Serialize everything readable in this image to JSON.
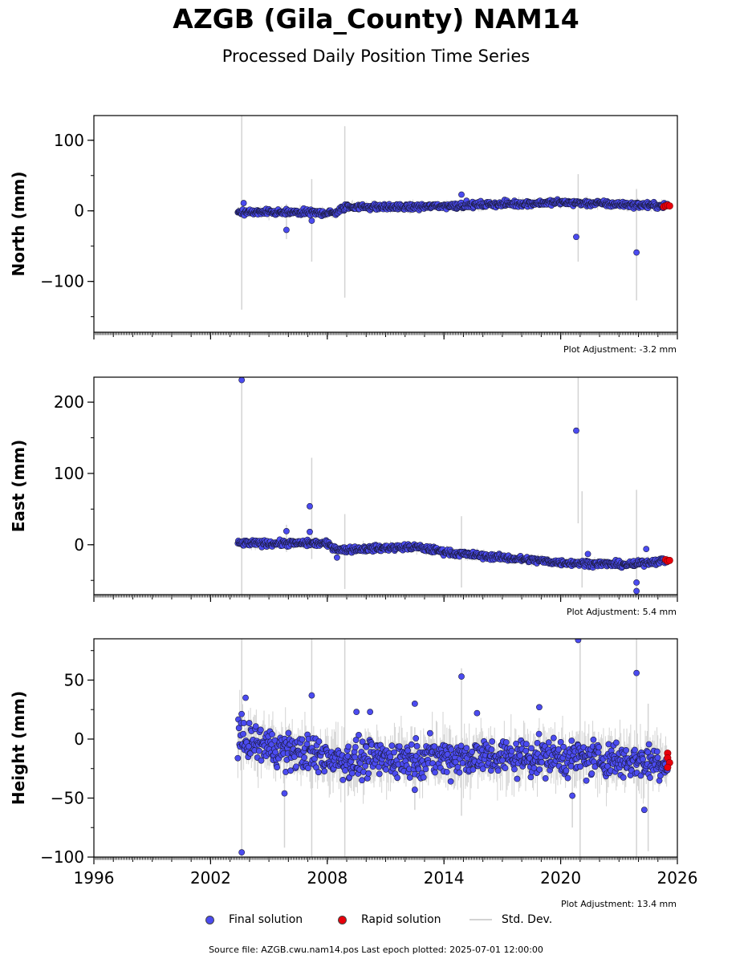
{
  "header": {
    "title": "AZGB (Gila_County) NAM14",
    "subtitle": "Processed Daily Position Time Series"
  },
  "legend": {
    "final_label": "Final solution",
    "rapid_label": "Rapid solution",
    "std_label": "Std. Dev."
  },
  "footer": {
    "text": "Source file: AZGB.cwu.nam14.pos  Last epoch plotted: 2025-07-01 12:00:00"
  },
  "colors": {
    "final": "#4b4bf0",
    "rapid": "#e8000b",
    "std": "#d3d3d3",
    "axis": "#000000"
  },
  "chart_data": [
    {
      "type": "scatter",
      "ylabel": "North (mm)",
      "adjustment": "Plot Adjustment: -3.2 mm",
      "xlim": [
        1996,
        2026
      ],
      "ylim": [
        -172,
        135
      ],
      "yticks": [
        -100,
        0,
        100
      ],
      "ytick_labels": [
        "−100",
        "0",
        "100"
      ],
      "xticks": [
        1996,
        2002,
        2008,
        2014,
        2020,
        2026
      ],
      "xtick_labels": [],
      "trend": [
        [
          2003.4,
          -2
        ],
        [
          2008.4,
          -3
        ],
        [
          2009.0,
          6
        ],
        [
          2012.0,
          5
        ],
        [
          2015.0,
          8
        ],
        [
          2020.0,
          12
        ],
        [
          2025.5,
          7
        ]
      ],
      "noise": 3,
      "error_bars": [
        [
          2003.6,
          -140,
          135
        ],
        [
          2007.2,
          -72,
          45
        ],
        [
          2008.9,
          -123,
          120
        ],
        [
          2020.9,
          -72,
          52
        ],
        [
          2023.9,
          -127,
          31
        ],
        [
          2005.9,
          -40,
          10
        ]
      ],
      "outliers": [
        [
          2003.7,
          11
        ],
        [
          2005.9,
          -27
        ],
        [
          2007.2,
          -14
        ],
        [
          2020.8,
          -37
        ],
        [
          2023.9,
          -59
        ],
        [
          2014.9,
          23
        ]
      ],
      "rapid": [
        [
          2025.3,
          6
        ],
        [
          2025.4,
          7
        ],
        [
          2025.5,
          8
        ],
        [
          2025.6,
          7
        ]
      ],
      "legend": "off",
      "grid": "off"
    },
    {
      "type": "scatter",
      "ylabel": "East (mm)",
      "adjustment": "Plot Adjustment: 5.4 mm",
      "xlim": [
        1996,
        2026
      ],
      "ylim": [
        -70,
        235
      ],
      "yticks": [
        0,
        100,
        200
      ],
      "ytick_labels": [
        "0",
        "100",
        "200"
      ],
      "xticks": [
        1996,
        2002,
        2008,
        2014,
        2020,
        2026
      ],
      "xtick_labels": [],
      "trend": [
        [
          2003.4,
          2
        ],
        [
          2007.9,
          2
        ],
        [
          2008.6,
          -7
        ],
        [
          2012.5,
          -3
        ],
        [
          2014.5,
          -12
        ],
        [
          2020.0,
          -25
        ],
        [
          2023.8,
          -28
        ],
        [
          2024.3,
          -25
        ],
        [
          2025.5,
          -22
        ]
      ],
      "noise": 3,
      "error_bars": [
        [
          2003.6,
          -70,
          235
        ],
        [
          2007.2,
          -20,
          122
        ],
        [
          2008.9,
          -62,
          43
        ],
        [
          2014.9,
          -60,
          40
        ],
        [
          2020.9,
          30,
          235
        ],
        [
          2021.1,
          -60,
          75
        ],
        [
          2023.9,
          -70,
          77
        ],
        [
          2005.9,
          -10,
          28
        ]
      ],
      "outliers": [
        [
          2003.6,
          231
        ],
        [
          2005.9,
          19
        ],
        [
          2007.1,
          54
        ],
        [
          2007.1,
          18
        ],
        [
          2020.8,
          160
        ],
        [
          2008.5,
          -18
        ],
        [
          2023.9,
          -53
        ],
        [
          2023.9,
          -65
        ],
        [
          2024.4,
          -6
        ],
        [
          2021.4,
          -13
        ]
      ],
      "rapid": [
        [
          2025.4,
          -21
        ],
        [
          2025.5,
          -23
        ],
        [
          2025.6,
          -22
        ]
      ],
      "legend": "off",
      "grid": "off"
    },
    {
      "type": "scatter",
      "ylabel": "Height (mm)",
      "adjustment": "Plot Adjustment: 13.4 mm",
      "xlim": [
        1996,
        2026
      ],
      "ylim": [
        -100,
        85
      ],
      "yticks": [
        -100,
        -50,
        0,
        50
      ],
      "ytick_labels": [
        "−100",
        "−50",
        "0",
        "50"
      ],
      "xticks": [
        1996,
        2002,
        2008,
        2014,
        2020,
        2026
      ],
      "xtick_labels": [
        "1996",
        "2002",
        "2008",
        "2014",
        "2020",
        "2026"
      ],
      "trend": [
        [
          2003.4,
          0
        ],
        [
          2006.0,
          -10
        ],
        [
          2009.0,
          -18
        ],
        [
          2014.0,
          -15
        ],
        [
          2020.0,
          -15
        ],
        [
          2025.5,
          -20
        ]
      ],
      "noise": 11,
      "error_bars": [
        [
          2003.6,
          -100,
          85
        ],
        [
          2005.8,
          -92,
          -10
        ],
        [
          2007.2,
          -100,
          85
        ],
        [
          2008.9,
          -100,
          85
        ],
        [
          2014.9,
          -65,
          60
        ],
        [
          2020.6,
          -75,
          -20
        ],
        [
          2021.0,
          -100,
          85
        ],
        [
          2023.9,
          -100,
          85
        ],
        [
          2024.5,
          -95,
          30
        ],
        [
          2012.5,
          -60,
          10
        ]
      ],
      "outliers": [
        [
          2003.6,
          -96
        ],
        [
          2003.8,
          35
        ],
        [
          2005.8,
          -46
        ],
        [
          2007.2,
          37
        ],
        [
          2014.9,
          53
        ],
        [
          2020.9,
          84
        ],
        [
          2023.9,
          56
        ],
        [
          2024.3,
          -60
        ],
        [
          2012.5,
          30
        ],
        [
          2012.5,
          -43
        ],
        [
          2009.5,
          23
        ],
        [
          2010.2,
          23
        ],
        [
          2015.7,
          22
        ],
        [
          2018.9,
          27
        ],
        [
          2020.6,
          -48
        ]
      ],
      "rapid": [
        [
          2025.5,
          -12
        ],
        [
          2025.5,
          -16
        ],
        [
          2025.6,
          -20
        ],
        [
          2025.5,
          -24
        ]
      ],
      "legend": "off",
      "grid": "off"
    }
  ]
}
